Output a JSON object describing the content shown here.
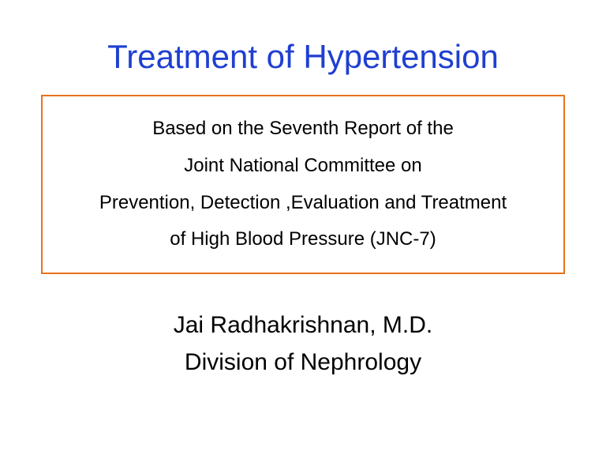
{
  "title": {
    "text": "Treatment of Hypertension",
    "color": "#1f3fd1",
    "fontsize": 42
  },
  "box": {
    "border_color": "#e8731a",
    "text_color": "#000000",
    "fontsize": 24,
    "lines": [
      "Based on the Seventh Report of the",
      "Joint National Committee on",
      "Prevention, Detection ,Evaluation and Treatment",
      "of High Blood Pressure (JNC-7)"
    ]
  },
  "author": {
    "text_color": "#000000",
    "fontsize": 30,
    "lines": [
      "Jai Radhakrishnan, M.D.",
      "Division of Nephrology"
    ]
  },
  "background_color": "#ffffff"
}
